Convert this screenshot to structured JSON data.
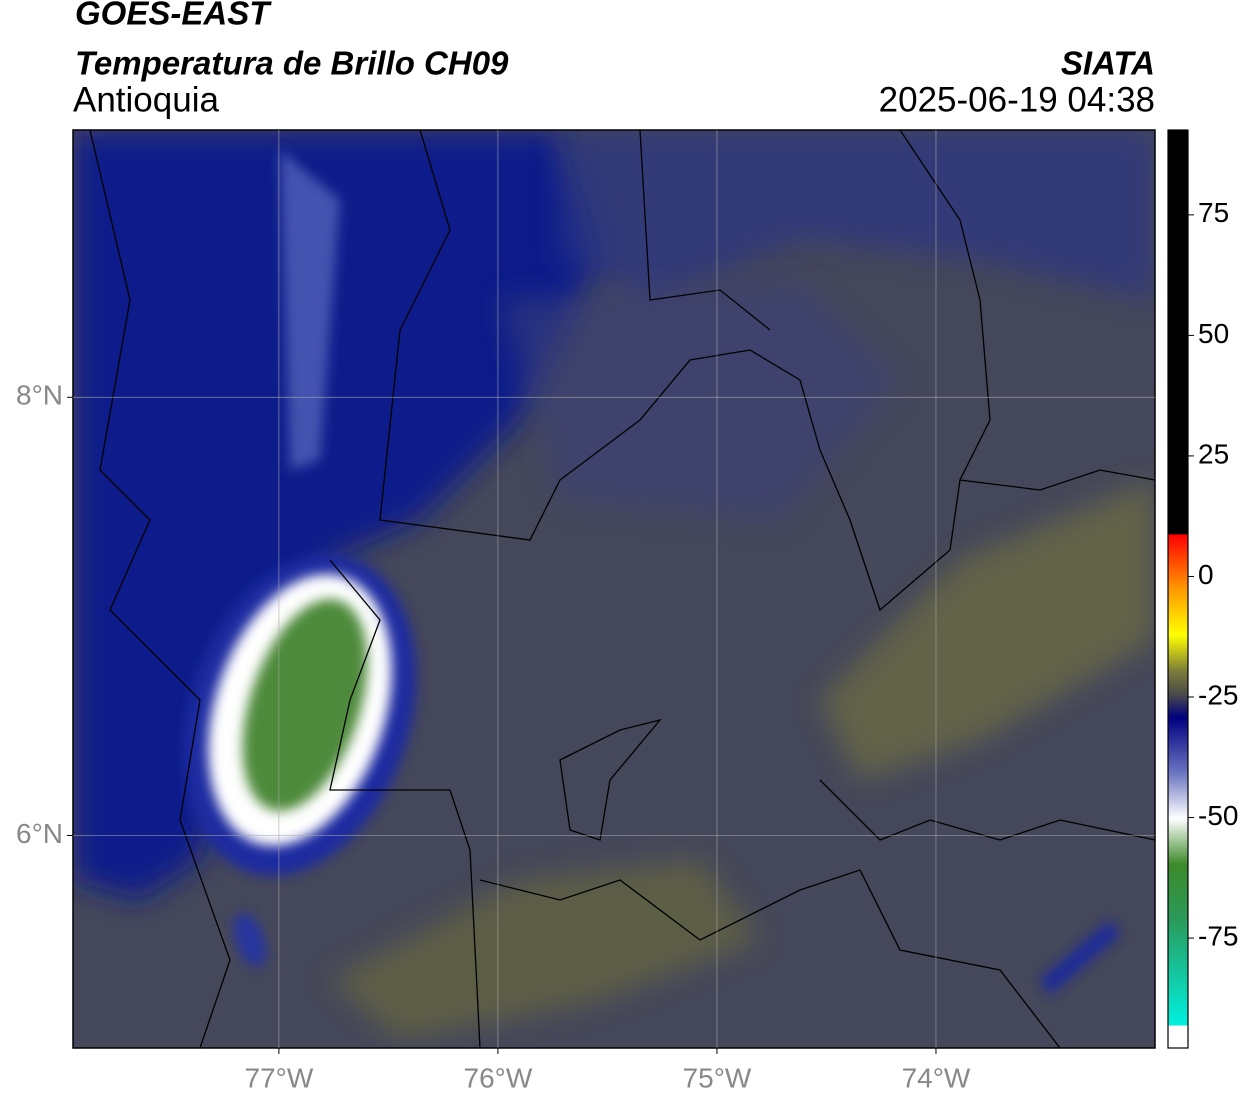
{
  "header": {
    "title": "GOES-EAST",
    "subtitle": "Temperatura de Brillo CH09",
    "region": "Antioquia",
    "agency": "SIATA",
    "datetime": "2025-06-19 04:38"
  },
  "map": {
    "xlim": [
      -77.94,
      -73.0
    ],
    "ylim": [
      5.03,
      9.22
    ],
    "xticks": [
      {
        "value": -77,
        "label": "77°W"
      },
      {
        "value": -76,
        "label": "76°W"
      },
      {
        "value": -75,
        "label": "75°W"
      },
      {
        "value": -74,
        "label": "74°W"
      }
    ],
    "yticks": [
      {
        "value": 8,
        "label": "8°N"
      },
      {
        "value": 6,
        "label": "6°N"
      }
    ],
    "grid": true
  },
  "colorbar": {
    "clim": [
      -97.8,
      92.6
    ],
    "ticks": [
      75,
      50,
      25,
      0,
      -25,
      -50,
      -75
    ]
  }
}
